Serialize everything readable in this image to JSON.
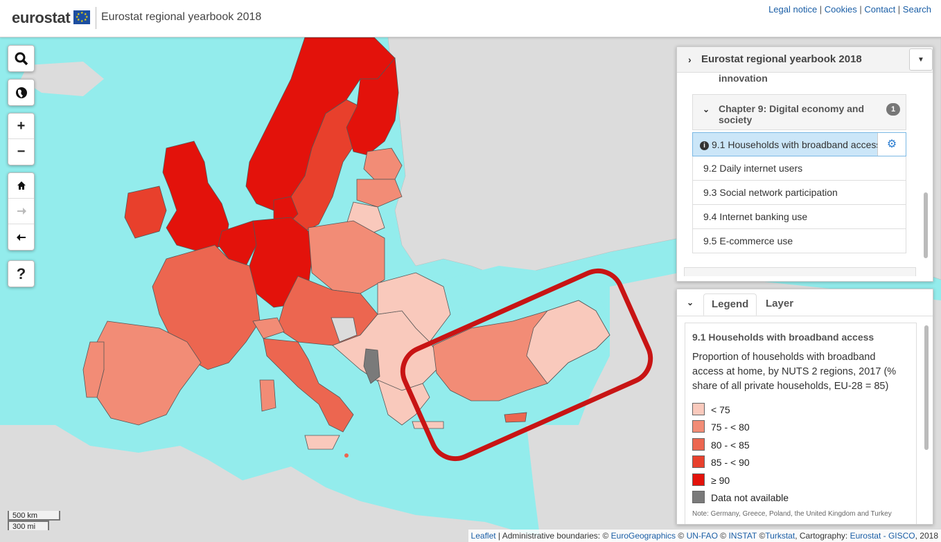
{
  "header": {
    "logo": "eurostat",
    "title": "Eurostat regional yearbook 2018",
    "links": [
      "Legal notice",
      "Cookies",
      "Contact",
      "Search"
    ]
  },
  "controls": {
    "search": "search-icon",
    "globe": "globe-icon",
    "zoom_in": "+",
    "zoom_out": "−",
    "home": "home-icon",
    "forward": "arrow-right-icon",
    "back": "arrow-left-icon",
    "help": "?"
  },
  "scale": {
    "km": "500 km",
    "mi": "300 mi"
  },
  "attribution": {
    "leaflet": "Leaflet",
    "admin": "Administrative boundaries: ©",
    "eurogeo": "EuroGeographics",
    "copy1": "©",
    "unfao": "UN-FAO",
    "copy2": "©",
    "instat": "INSTAT",
    "copy3": "©",
    "turkstat": "Turkstat",
    "carto": ", Cartography:",
    "gisco": "Eurostat - GISCO",
    "year": ", 2018"
  },
  "panel": {
    "title": "Eurostat regional yearbook 2018",
    "cut_text": "innovation",
    "chapter": {
      "title": "Chapter 9: Digital economy and society",
      "badge": "1"
    },
    "items": [
      "9.1 Households with broadband access",
      "9.2 Daily internet users",
      "9.3 Social network participation",
      "9.4 Internet banking use",
      "9.5 E-commerce use"
    ]
  },
  "legend_panel": {
    "tabs": [
      "Legend",
      "Layer"
    ],
    "title": "9.1 Households with broadband access",
    "description": "Proportion of households with broadband access at home, by NUTS 2 regions, 2017 (% share of all private households, EU-28 = 85)",
    "classes": [
      {
        "label": "< 75",
        "color": "#f9c9bc"
      },
      {
        "label": "75 - < 80",
        "color": "#f28c76"
      },
      {
        "label": "80 - < 85",
        "color": "#ec6650"
      },
      {
        "label": "85 - < 90",
        "color": "#e8402c"
      },
      {
        "label": "≥ 90",
        "color": "#e3120b"
      },
      {
        "label": "Data not available",
        "color": "#7a7a7a"
      }
    ],
    "note": "Note: Germany, Greece, Poland, the United Kingdom and Turkey"
  },
  "colors": {
    "sea": "#93ecec",
    "non_eu_land": "#dcdcdc",
    "highlight_ring": "#c81414"
  }
}
